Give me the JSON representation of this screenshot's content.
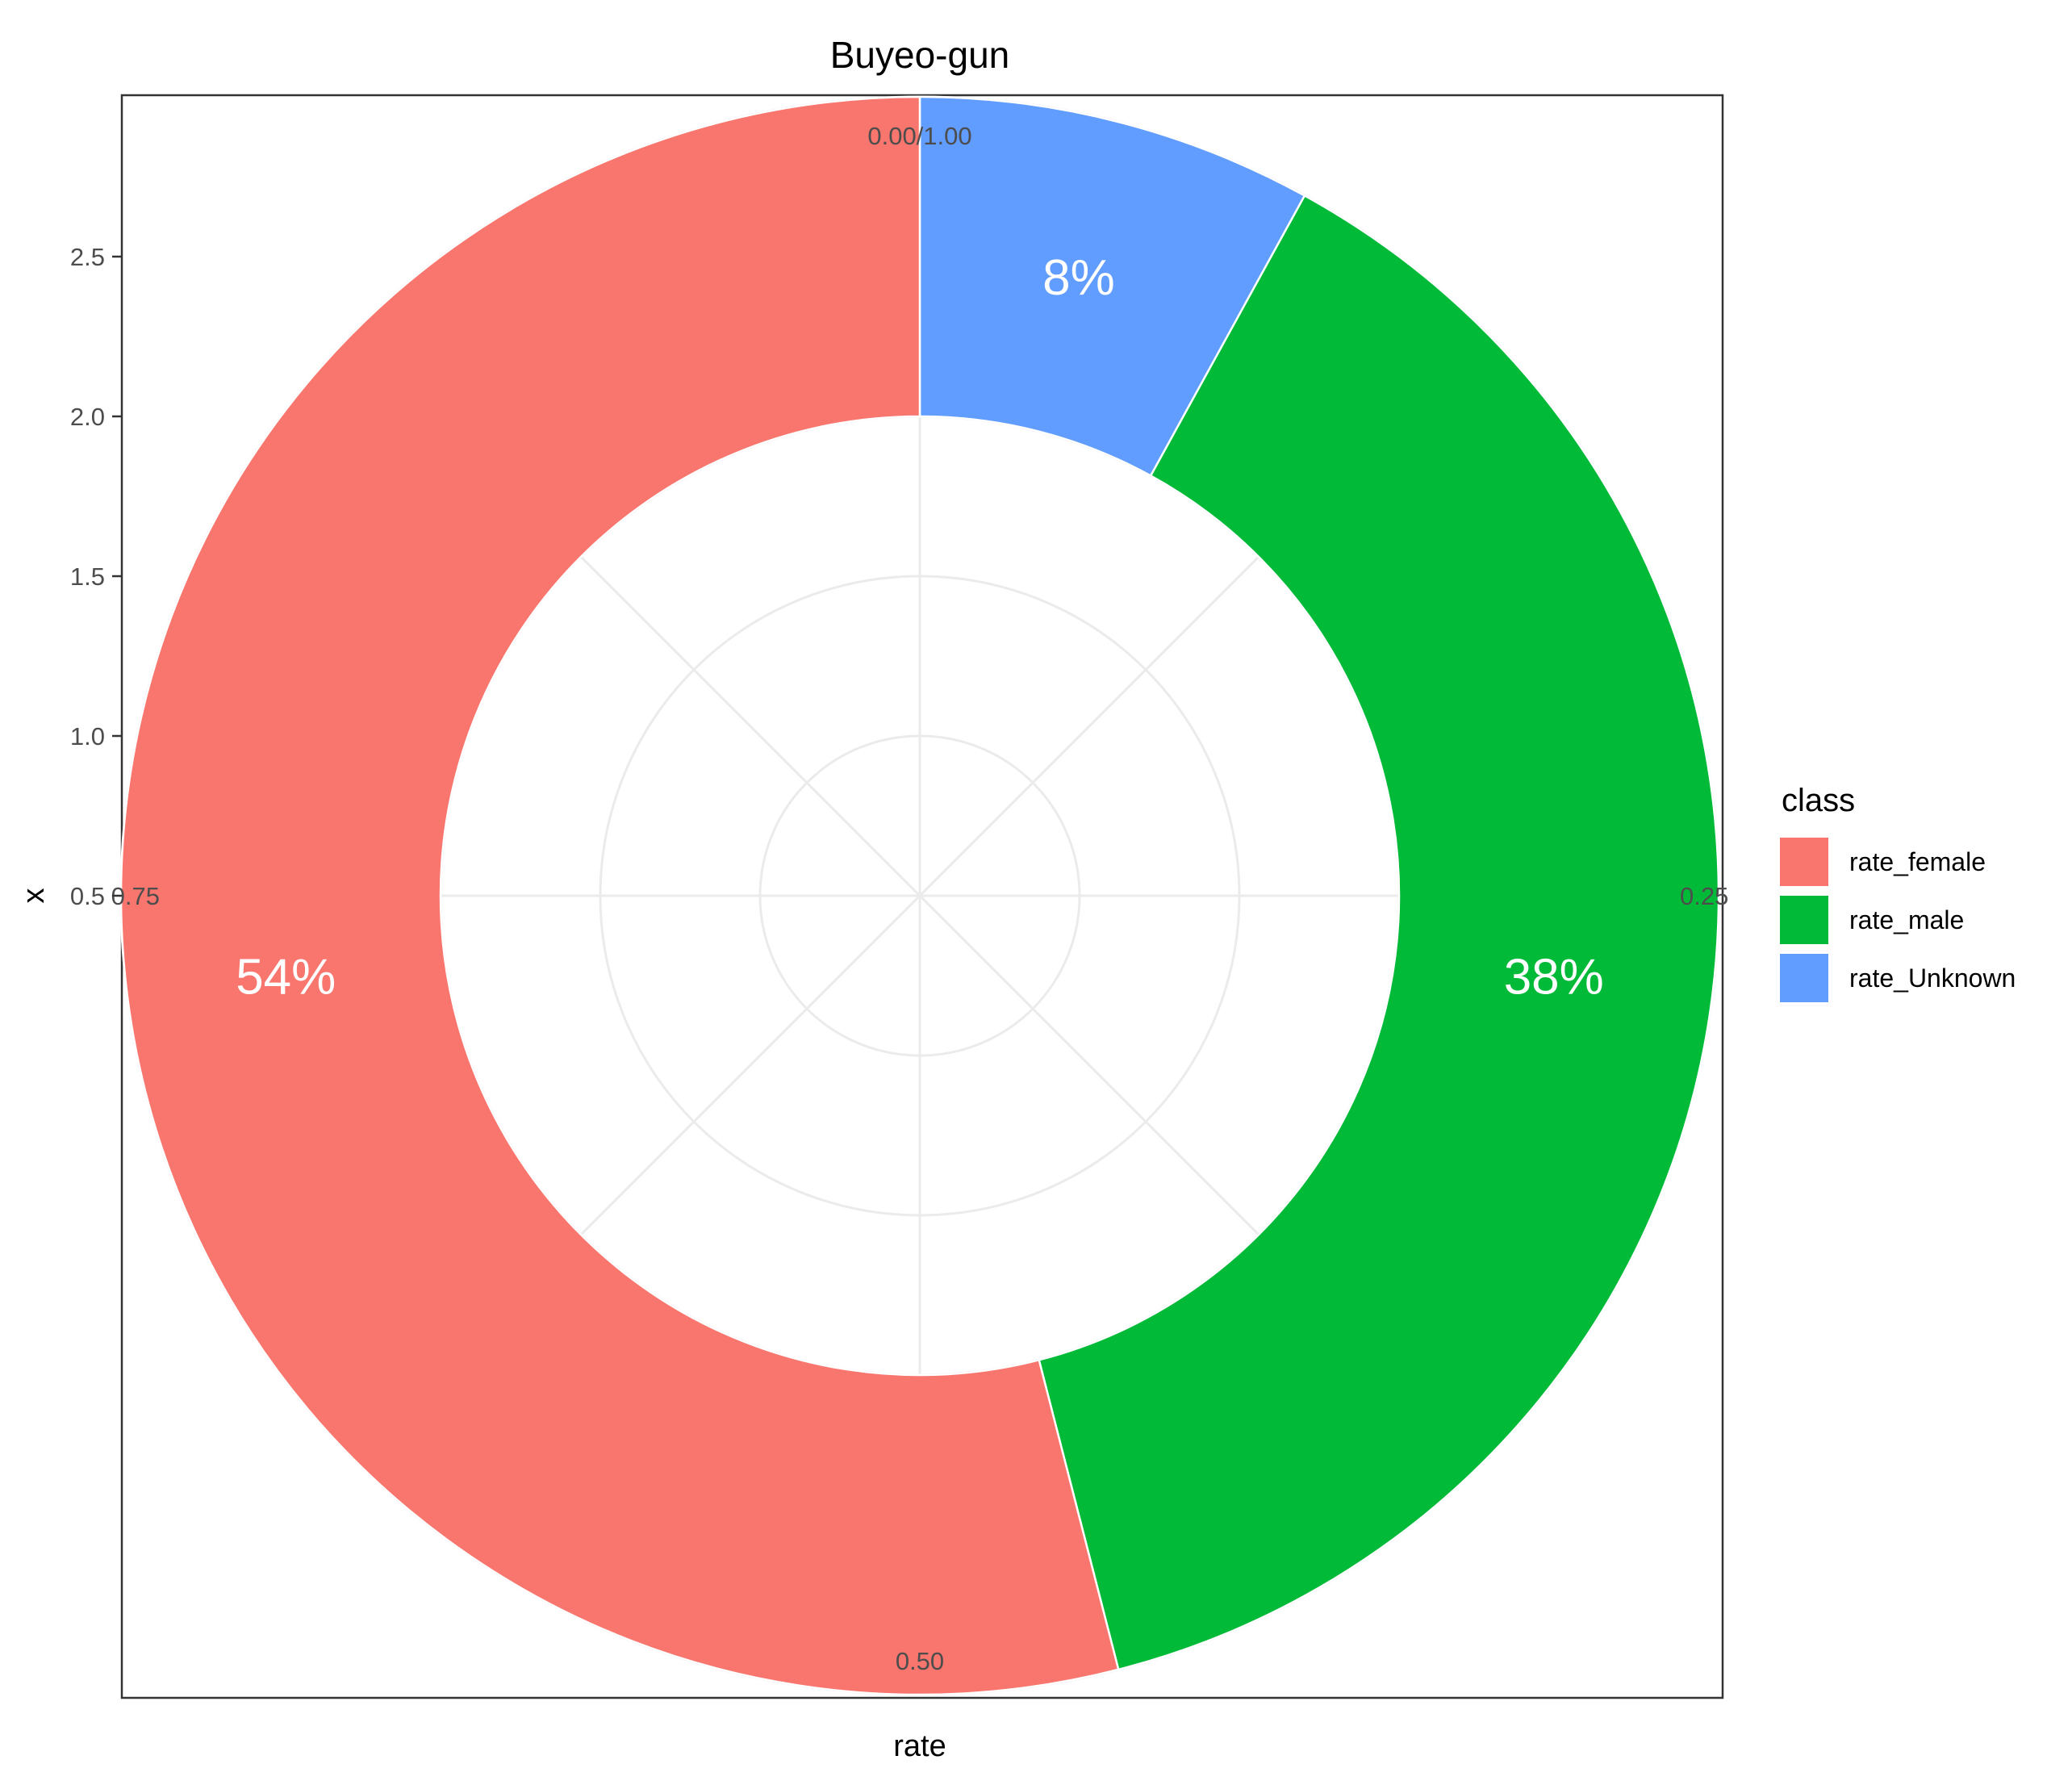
{
  "chart_data": {
    "type": "pie",
    "variant": "donut",
    "title": "Buyeo-gun",
    "xlabel": "rate",
    "ylabel": "x",
    "y_ticks": [
      "0.5",
      "1.0",
      "1.5",
      "2.0",
      "2.5"
    ],
    "y_tick_values": [
      0.5,
      1.0,
      1.5,
      2.0,
      2.5
    ],
    "angle_ticks": [
      "0.00/1.00",
      "0.25",
      "0.50",
      "0.75"
    ],
    "angle_tick_values": [
      0,
      0.25,
      0.5,
      0.75
    ],
    "inner_radius_value": 1.5,
    "outer_radius_value": 2.5,
    "ylim": [
      0,
      2.5
    ],
    "grid": true,
    "legend_title": "class",
    "legend_position": "right",
    "slices": [
      {
        "name": "rate_Unknown",
        "value": 0.08,
        "label": "8%",
        "color": "#619CFF"
      },
      {
        "name": "rate_male",
        "value": 0.38,
        "label": "38%",
        "color": "#00BA38"
      },
      {
        "name": "rate_female",
        "value": 0.54,
        "label": "54%",
        "color": "#F8766D"
      }
    ],
    "legend": [
      {
        "name": "rate_female",
        "color": "#F8766D"
      },
      {
        "name": "rate_male",
        "color": "#00BA38"
      },
      {
        "name": "rate_Unknown",
        "color": "#619CFF"
      }
    ]
  }
}
